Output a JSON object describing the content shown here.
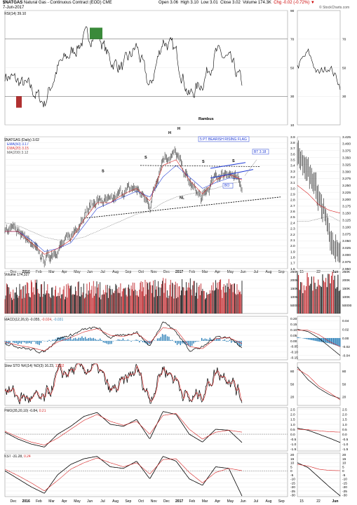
{
  "header": {
    "symbol": "$NATGAS",
    "name": "Natural Gas - Continuous Contract (EOD)",
    "exchange": "CME",
    "date": "7-Jun-2017",
    "open": "Open 3.06",
    "high": "High 3.10",
    "low": "Low 3.01",
    "close": "Close 3.02",
    "volume": "Volume 174.3K",
    "change": "Chg -0.02 (-0.72%)",
    "watermark": "© StockCharts.com"
  },
  "colors": {
    "price": "#000000",
    "up": "#1a1a1a",
    "ema50": "#1f3bd6",
    "ema20": "#d62020",
    "ma200": "#7a7a7a",
    "volUp": "#1a1a1a",
    "volDown": "#c0282d",
    "macdHist": "#2a7fb8",
    "overbought": "#3a8a3a",
    "oversold": "#b03030"
  },
  "xaxis_main": [
    "Dec",
    "2016",
    "Feb",
    "Mar",
    "Apr",
    "May",
    "Jun",
    "Jul",
    "Aug",
    "Sep",
    "Oct",
    "Nov",
    "Dec",
    "2017",
    "Feb",
    "Mar",
    "Apr",
    "May",
    "Jun",
    "Jul",
    "Aug",
    "Sep"
  ],
  "xaxis_side": [
    "15",
    "22",
    "Jun"
  ],
  "panels": {
    "rsi": {
      "legend": "RSI(14) 39.10",
      "annotation": "Rambus",
      "ticks": [
        "90",
        "70",
        "50",
        "30",
        "10"
      ],
      "side_ticks": [
        "70",
        "50",
        "30"
      ]
    },
    "price": {
      "legend_title": "$NATGAS (Daily) 3.02",
      "legend_ema50": "EMA(50) 3.17",
      "legend_ema20": "EMA(20) 3.15",
      "legend_ma200": "MA(200) 3.12",
      "ticks": [
        "3.9",
        "3.8",
        "3.7",
        "3.6",
        "3.5",
        "3.4",
        "3.3",
        "3.2",
        "3.1",
        "3.0",
        "2.9",
        "2.8",
        "2.7",
        "2.6",
        "2.5",
        "2.4",
        "2.3",
        "2.2",
        "2.1",
        "2.0",
        "1.9",
        "1.8",
        "1.7",
        "1.6"
      ],
      "side_ticks": [
        "3.425",
        "3.400",
        "3.375",
        "3.350",
        "3.325",
        "3.300",
        "3.275",
        "3.250",
        "3.225",
        "3.200",
        "3.175",
        "3.150",
        "3.125",
        "3.100",
        "3.075",
        "3.050",
        "3.025",
        "3.000",
        "2.975",
        "2.950"
      ],
      "annotations": {
        "flag_title": "5 PT BEARISH RISING FLAG",
        "bt": "BT 3.18",
        "b0": "BO",
        "nl": "NL",
        "h1": "H",
        "h2": "H",
        "s1": "S",
        "s2": "S",
        "s3": "S",
        "s4": "S"
      }
    },
    "volume": {
      "legend": "Volume 174,327",
      "ticks": [
        "250K",
        "200K",
        "150K",
        "100K",
        "50000"
      ],
      "side_ticks": [
        "250K",
        "200K",
        "150K",
        "100K",
        "50000"
      ]
    },
    "macd": {
      "legend_a": "MACD(12,26,9)",
      "legend_b": "-0.055",
      "legend_c": "-0.024",
      "legend_d": "-0.031",
      "ticks": [
        "0.20",
        "0.15",
        "0.10",
        "0.05",
        "0.00",
        "-0.05",
        "-0.10",
        "-0.15"
      ],
      "side_ticks": [
        "0.04",
        "0.02",
        "0.00",
        "-0.02",
        "-0.04"
      ]
    },
    "sto": {
      "legend_a": "Slow STO %K(14) %D(3)",
      "legend_b": "16.23",
      "legend_c": "13.02",
      "ticks": [
        "80",
        "50",
        "20"
      ],
      "side_ticks": [
        "80",
        "50",
        "20"
      ]
    },
    "pmo": {
      "legend_a": "PMO(35,20,10)",
      "legend_b": "-0.84,",
      "legend_c": "0.21",
      "ticks": [
        "2.5",
        "2.0",
        "1.5",
        "1.0",
        "0.5",
        "0.0",
        "-0.5",
        "-1.0",
        "-1.5"
      ],
      "side_ticks": [
        "2.5",
        "2.0",
        "1.5",
        "1.0",
        "0.5",
        "0.0",
        "-0.5",
        "-1.0",
        "-1.5"
      ]
    },
    "kst": {
      "legend_a": "KST -31.28,",
      "legend_b": "0.24",
      "ticks": [
        "20",
        "15",
        "10",
        "5",
        "0",
        "-5",
        "-10",
        "-15",
        "-20",
        "-25",
        "-30"
      ],
      "side_ticks": [
        "20",
        "15",
        "10",
        "5",
        "0",
        "-5",
        "-10",
        "-15",
        "-20",
        "-25",
        "-30"
      ]
    }
  },
  "chart_data": [
    {
      "type": "line",
      "title": "$NATGAS (Daily) 3.02",
      "x": [
        "Dec",
        "2016",
        "Feb",
        "Mar",
        "Apr",
        "May",
        "Jun",
        "Jul",
        "Aug",
        "Sep",
        "Oct",
        "Nov",
        "Dec",
        "2017",
        "Feb",
        "Mar",
        "Apr",
        "May",
        "Jun"
      ],
      "series": [
        {
          "name": "$NATGAS (Daily)",
          "values": [
            2.25,
            2.3,
            2.0,
            1.75,
            1.95,
            2.15,
            2.55,
            2.8,
            2.75,
            2.95,
            3.0,
            2.7,
            3.55,
            3.6,
            3.1,
            2.8,
            3.2,
            3.3,
            3.02
          ]
        },
        {
          "name": "EMA(50)",
          "values": [
            2.25,
            2.25,
            2.1,
            1.9,
            1.95,
            2.05,
            2.35,
            2.65,
            2.75,
            2.85,
            2.95,
            2.85,
            3.2,
            3.4,
            3.2,
            3.0,
            3.1,
            3.18,
            3.17
          ]
        },
        {
          "name": "EMA(20)",
          "values": [
            2.25,
            2.25,
            2.05,
            1.85,
            1.95,
            2.1,
            2.45,
            2.75,
            2.75,
            2.9,
            3.0,
            2.78,
            3.4,
            3.5,
            3.15,
            2.9,
            3.15,
            3.25,
            3.15
          ]
        },
        {
          "name": "MA(200)",
          "values": [
            2.4,
            2.35,
            2.25,
            2.15,
            2.1,
            2.1,
            2.15,
            2.25,
            2.35,
            2.45,
            2.55,
            2.6,
            2.75,
            2.85,
            2.9,
            2.95,
            3.0,
            3.08,
            3.12
          ]
        }
      ],
      "ylim": [
        1.6,
        3.9
      ]
    },
    {
      "type": "line",
      "title": "RSI(14) 39.10",
      "x": [
        "Dec",
        "2016",
        "Feb",
        "Mar",
        "Apr",
        "May",
        "Jun",
        "Jul",
        "Aug",
        "Sep",
        "Oct",
        "Nov",
        "Dec",
        "2017",
        "Feb",
        "Mar",
        "Apr",
        "May",
        "Jun"
      ],
      "series": [
        {
          "name": "RSI(14)",
          "values": [
            45,
            40,
            35,
            25,
            50,
            60,
            70,
            75,
            55,
            50,
            65,
            35,
            70,
            60,
            30,
            40,
            60,
            55,
            39.1
          ]
        }
      ],
      "ylim": [
        10,
        90
      ]
    },
    {
      "type": "bar",
      "title": "Volume 174,327",
      "categories": [
        "Dec",
        "2016",
        "Feb",
        "Mar",
        "Apr",
        "May",
        "Jun",
        "Jul",
        "Aug",
        "Sep",
        "Oct",
        "Nov",
        "Dec",
        "2017",
        "Feb",
        "Mar",
        "Apr",
        "May",
        "Jun"
      ],
      "values": [
        150000,
        140000,
        160000,
        170000,
        150000,
        145000,
        160000,
        155000,
        150000,
        150000,
        165000,
        160000,
        170000,
        155000,
        180000,
        150000,
        165000,
        165000,
        174327
      ],
      "ylim": [
        0,
        250000
      ]
    },
    {
      "type": "line",
      "title": "MACD(12,26,9) -0.055, -0.024, -0.031",
      "x": [
        "Dec",
        "2016",
        "Feb",
        "Mar",
        "Apr",
        "May",
        "Jun",
        "Jul",
        "Aug",
        "Sep",
        "Oct",
        "Nov",
        "Dec",
        "2017",
        "Feb",
        "Mar",
        "Apr",
        "May",
        "Jun"
      ],
      "series": [
        {
          "name": "MACD",
          "values": [
            -0.02,
            -0.05,
            -0.08,
            -0.1,
            0.02,
            0.05,
            0.1,
            0.12,
            0.03,
            0.05,
            0.08,
            -0.05,
            0.18,
            0.08,
            -0.08,
            -0.06,
            0.04,
            0.03,
            -0.055
          ]
        },
        {
          "name": "Signal",
          "values": [
            -0.01,
            -0.04,
            -0.06,
            -0.09,
            -0.01,
            0.03,
            0.08,
            0.11,
            0.05,
            0.04,
            0.07,
            -0.02,
            0.12,
            0.1,
            -0.05,
            -0.07,
            0.02,
            0.03,
            -0.024
          ]
        }
      ],
      "ylim": [
        -0.15,
        0.2
      ]
    },
    {
      "type": "line",
      "title": "Slow STO %K(14) %D(3) 16.23, 13.02",
      "x": [
        "Dec",
        "2016",
        "Feb",
        "Mar",
        "Apr",
        "May",
        "Jun",
        "Jul",
        "Aug",
        "Sep",
        "Oct",
        "Nov",
        "Dec",
        "2017",
        "Feb",
        "Mar",
        "Apr",
        "May",
        "Jun"
      ],
      "series": [
        {
          "name": "%K",
          "values": [
            40,
            20,
            15,
            10,
            70,
            80,
            85,
            90,
            30,
            50,
            85,
            15,
            90,
            60,
            10,
            30,
            80,
            70,
            16.23
          ]
        },
        {
          "name": "%D",
          "values": [
            45,
            25,
            18,
            12,
            60,
            75,
            80,
            85,
            40,
            45,
            80,
            20,
            85,
            65,
            15,
            25,
            75,
            72,
            13.02
          ]
        }
      ],
      "ylim": [
        0,
        100
      ]
    },
    {
      "type": "line",
      "title": "PMO(35,20,10) -0.84, 0.21",
      "x": [
        "Dec",
        "2016",
        "Feb",
        "Mar",
        "Apr",
        "May",
        "Jun",
        "Jul",
        "Aug",
        "Sep",
        "Oct",
        "Nov",
        "Dec",
        "2017",
        "Feb",
        "Mar",
        "Apr",
        "May",
        "Jun"
      ],
      "series": [
        {
          "name": "PMO",
          "values": [
            0.2,
            -0.5,
            -1.0,
            -1.3,
            0.0,
            0.8,
            1.8,
            2.2,
            1.0,
            0.8,
            1.5,
            -0.5,
            2.3,
            2.0,
            0.0,
            -0.8,
            0.5,
            0.4,
            -0.84
          ]
        },
        {
          "name": "Signal",
          "values": [
            0.3,
            -0.3,
            -0.8,
            -1.1,
            -0.4,
            0.5,
            1.4,
            2.0,
            1.3,
            0.9,
            1.3,
            0.0,
            1.9,
            2.1,
            0.5,
            -0.5,
            0.2,
            0.4,
            0.21
          ]
        }
      ],
      "ylim": [
        -1.5,
        2.5
      ]
    },
    {
      "type": "line",
      "title": "KST -31.28, 0.24",
      "x": [
        "Dec",
        "2016",
        "Feb",
        "Mar",
        "Apr",
        "May",
        "Jun",
        "Jul",
        "Aug",
        "Sep",
        "Oct",
        "Nov",
        "Dec",
        "2017",
        "Feb",
        "Mar",
        "Apr",
        "May",
        "Jun"
      ],
      "series": [
        {
          "name": "KST",
          "values": [
            0,
            -10,
            -20,
            -28,
            -5,
            8,
            15,
            18,
            5,
            3,
            12,
            -10,
            18,
            12,
            -10,
            -18,
            5,
            3,
            -31.28
          ]
        },
        {
          "name": "Signal",
          "values": [
            2,
            -6,
            -15,
            -25,
            -12,
            2,
            10,
            16,
            10,
            5,
            10,
            -4,
            14,
            15,
            -2,
            -15,
            -2,
            3,
            0.24
          ]
        }
      ],
      "ylim": [
        -30,
        20
      ]
    }
  ]
}
